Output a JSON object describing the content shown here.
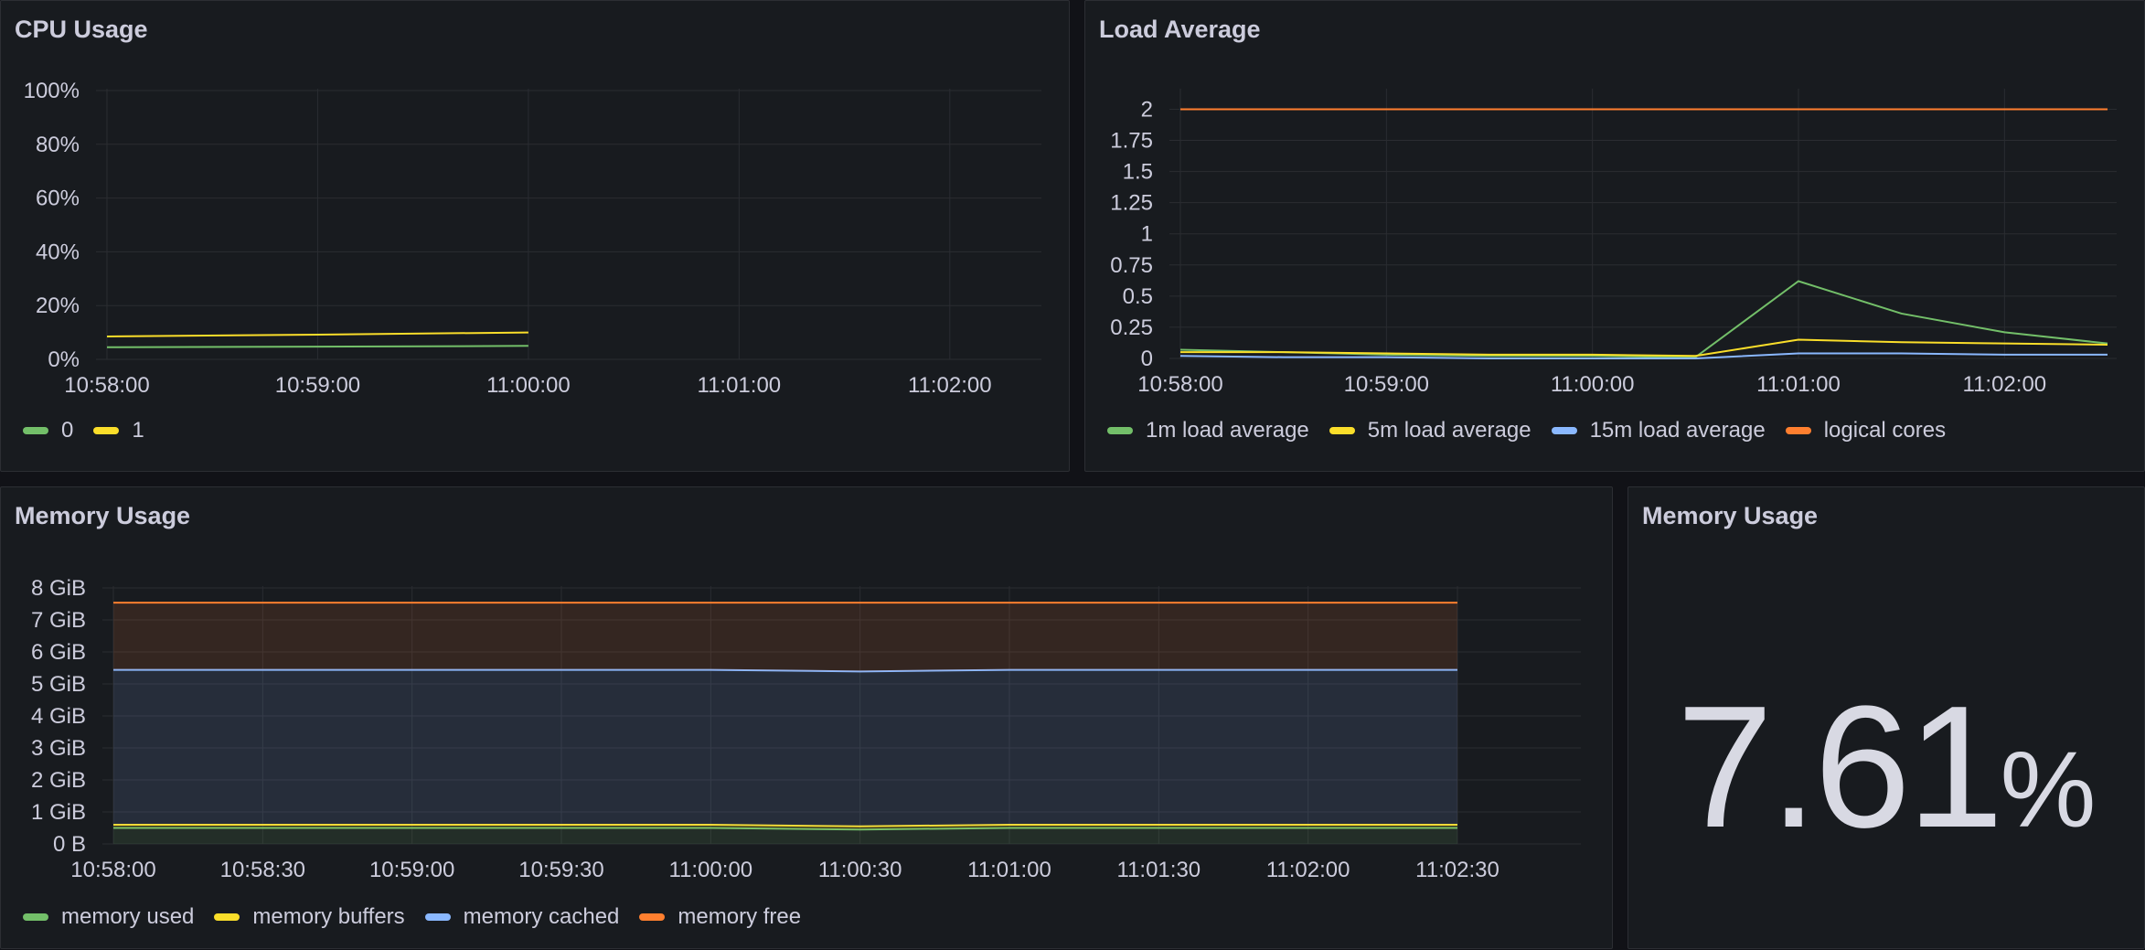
{
  "panels": {
    "cpu": {
      "title": "CPU Usage",
      "legend": [
        {
          "label": "0",
          "color": "#73bf69"
        },
        {
          "label": "1",
          "color": "#fade2a"
        }
      ]
    },
    "load": {
      "title": "Load Average",
      "legend": [
        {
          "label": "1m load average",
          "color": "#73bf69"
        },
        {
          "label": "5m load average",
          "color": "#fade2a"
        },
        {
          "label": "15m load average",
          "color": "#8ab8ff"
        },
        {
          "label": "logical cores",
          "color": "#ff7f2f"
        }
      ]
    },
    "memory": {
      "title": "Memory Usage",
      "legend": [
        {
          "label": "memory used",
          "color": "#73bf69"
        },
        {
          "label": "memory buffers",
          "color": "#fade2a"
        },
        {
          "label": "memory cached",
          "color": "#8ab8ff"
        },
        {
          "label": "memory free",
          "color": "#ff7f2f"
        }
      ]
    },
    "memstat": {
      "title": "Memory Usage",
      "value": "7.61",
      "unit": "%"
    }
  },
  "chart_data": [
    {
      "type": "line",
      "title": "CPU Usage",
      "x": [
        "10:58:00",
        "10:59:00",
        "11:00:00"
      ],
      "xticks": [
        "10:58:00",
        "10:59:00",
        "11:00:00",
        "11:01:00",
        "11:02:00"
      ],
      "yticks": [
        "0%",
        "20%",
        "40%",
        "60%",
        "80%",
        "100%"
      ],
      "ylim": [
        0,
        100
      ],
      "grid": true,
      "legend_position": "bottom",
      "series": [
        {
          "name": "0",
          "color": "#73bf69",
          "values": [
            4.5,
            4.7,
            5.0
          ]
        },
        {
          "name": "1",
          "color": "#fade2a",
          "values": [
            8.5,
            9.2,
            10.0
          ]
        }
      ]
    },
    {
      "type": "line",
      "title": "Load Average",
      "x": [
        "10:58:00",
        "10:58:30",
        "10:59:00",
        "10:59:30",
        "11:00:00",
        "11:00:30",
        "11:01:00",
        "11:01:30",
        "11:02:00",
        "11:02:30"
      ],
      "xticks": [
        "10:58:00",
        "10:59:00",
        "11:00:00",
        "11:01:00",
        "11:02:00"
      ],
      "yticks": [
        "0",
        "0.25",
        "0.5",
        "0.75",
        "1",
        "1.25",
        "1.5",
        "1.75",
        "2"
      ],
      "ylim": [
        0,
        2.15
      ],
      "grid": true,
      "legend_position": "bottom",
      "series": [
        {
          "name": "1m load average",
          "color": "#73bf69",
          "values": [
            0.07,
            0.05,
            0.03,
            0.02,
            0.02,
            0.01,
            0.62,
            0.36,
            0.21,
            0.12
          ]
        },
        {
          "name": "5m load average",
          "color": "#fade2a",
          "values": [
            0.05,
            0.05,
            0.04,
            0.03,
            0.03,
            0.02,
            0.15,
            0.13,
            0.12,
            0.11
          ]
        },
        {
          "name": "15m load average",
          "color": "#8ab8ff",
          "values": [
            0.02,
            0.01,
            0.01,
            0.0,
            0.0,
            0.0,
            0.04,
            0.04,
            0.03,
            0.03
          ]
        },
        {
          "name": "logical cores",
          "color": "#ff7f2f",
          "values": [
            2,
            2,
            2,
            2,
            2,
            2,
            2,
            2,
            2,
            2
          ]
        }
      ]
    },
    {
      "type": "area",
      "title": "Memory Usage",
      "x": [
        "10:58:00",
        "10:58:30",
        "10:59:00",
        "10:59:30",
        "11:00:00",
        "11:00:30",
        "11:01:00",
        "11:01:30",
        "11:02:00",
        "11:02:30"
      ],
      "xticks": [
        "10:58:00",
        "10:58:30",
        "10:59:00",
        "10:59:30",
        "11:00:00",
        "11:00:30",
        "11:01:00",
        "11:01:30",
        "11:02:00",
        "11:02:30"
      ],
      "yticks": [
        "0 B",
        "1 GiB",
        "2 GiB",
        "3 GiB",
        "4 GiB",
        "5 GiB",
        "6 GiB",
        "7 GiB",
        "8 GiB"
      ],
      "ylim": [
        0,
        8
      ],
      "y_unit": "GiB",
      "stacked": true,
      "grid": true,
      "legend_position": "bottom",
      "series": [
        {
          "name": "memory used",
          "color": "#73bf69",
          "values": [
            0.5,
            0.5,
            0.5,
            0.5,
            0.5,
            0.45,
            0.5,
            0.5,
            0.5,
            0.5
          ]
        },
        {
          "name": "memory buffers",
          "color": "#fade2a",
          "values": [
            0.1,
            0.1,
            0.1,
            0.1,
            0.1,
            0.1,
            0.1,
            0.1,
            0.1,
            0.1
          ]
        },
        {
          "name": "memory cached",
          "color": "#8ab8ff",
          "values": [
            4.84,
            4.84,
            4.84,
            4.84,
            4.84,
            4.84,
            4.84,
            4.84,
            4.84,
            4.84
          ]
        },
        {
          "name": "memory free",
          "color": "#ff7f2f",
          "values": [
            2.1,
            2.1,
            2.1,
            2.1,
            2.1,
            2.15,
            2.1,
            2.1,
            2.1,
            2.1
          ]
        }
      ]
    }
  ]
}
